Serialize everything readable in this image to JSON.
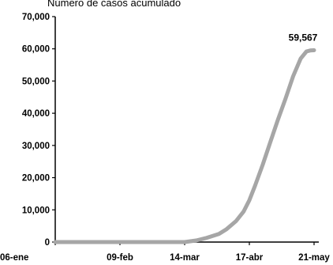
{
  "chart_data": {
    "type": "line",
    "title": "Número de casos acumulado",
    "xlabel": "",
    "ylabel": "",
    "x_ticks": [
      "06-ene",
      "09-feb",
      "14-mar",
      "17-abr",
      "21-may"
    ],
    "y_ticks": [
      "0",
      "10,000",
      "20,000",
      "30,000",
      "40,000",
      "50,000",
      "60,000",
      "70,000"
    ],
    "ylim": [
      0,
      70000
    ],
    "grid": false,
    "line_color": "#a6a6a6",
    "series": [
      {
        "x": [
          "06-ene",
          "09-feb",
          "14-mar",
          "20-mar",
          "25-mar",
          "01-abr",
          "05-abr",
          "10-abr",
          "14-abr",
          "17-abr",
          "20-abr",
          "24-abr",
          "28-abr",
          "02-may",
          "06-may",
          "10-may",
          "14-may",
          "17-may",
          "19-may",
          "21-may"
        ],
        "values": [
          0,
          0,
          0,
          500,
          1200,
          2500,
          4000,
          6500,
          9500,
          13000,
          17500,
          24000,
          31000,
          38000,
          44500,
          51500,
          57000,
          59200,
          59500,
          59567
        ]
      }
    ],
    "data_labels": [
      {
        "x": "21-may",
        "value": 59567,
        "text": "59,567"
      }
    ]
  }
}
